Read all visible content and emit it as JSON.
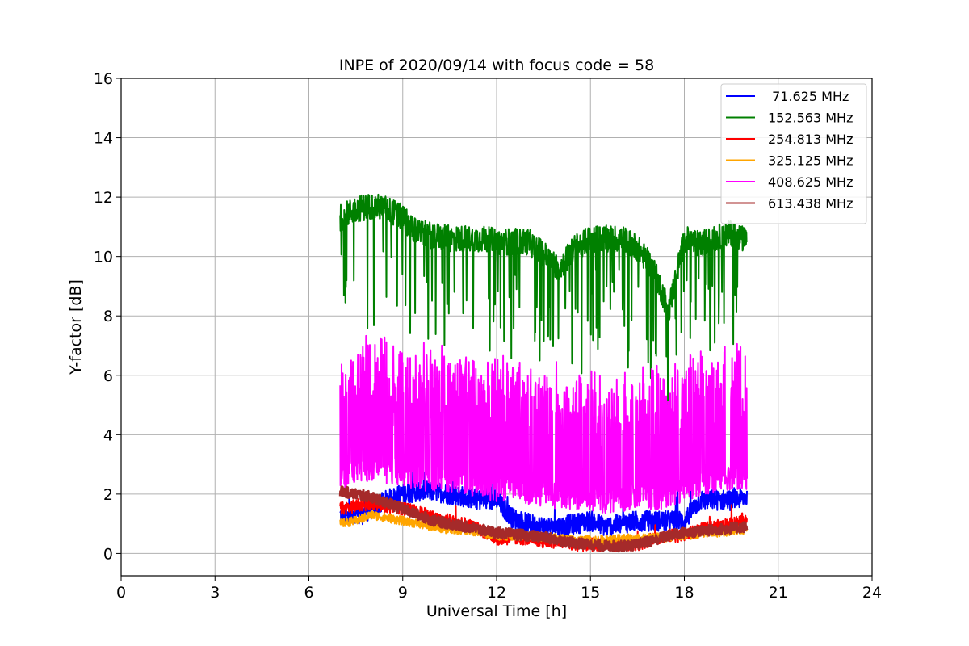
{
  "chart_data": {
    "type": "line",
    "title": "INPE of 2020/09/14 with focus code = 58",
    "xlabel": "Universal Time [h]",
    "ylabel": "Y-factor [dB]",
    "xlim": [
      0,
      24
    ],
    "ylim": [
      -0.75,
      16
    ],
    "xticks": [
      0,
      3,
      6,
      9,
      12,
      15,
      18,
      21,
      24
    ],
    "yticks": [
      0,
      2,
      4,
      6,
      8,
      10,
      12,
      14,
      16
    ],
    "grid": true,
    "legend_position": "top-right",
    "series": [
      {
        "name": " 71.625 MHz",
        "color": "#0000ff",
        "x": [
          7.0,
          7.5,
          8.0,
          8.5,
          9.0,
          9.5,
          10.0,
          10.5,
          11.0,
          11.5,
          12.0,
          12.5,
          13.0,
          13.5,
          14.0,
          14.5,
          15.0,
          15.5,
          16.0,
          16.5,
          17.0,
          17.5,
          18.0,
          18.5,
          19.0,
          19.5,
          20.0
        ],
        "y": [
          1.3,
          1.2,
          1.5,
          1.8,
          2.0,
          2.1,
          2.1,
          2.0,
          1.9,
          1.8,
          1.8,
          1.2,
          1.0,
          0.9,
          0.9,
          1.0,
          1.1,
          0.9,
          1.0,
          1.1,
          1.1,
          1.1,
          1.1,
          1.8,
          1.8,
          1.8,
          1.9
        ]
      },
      {
        "name": "152.563 MHz",
        "color": "#008000",
        "x": [
          7.0,
          7.5,
          8.0,
          8.5,
          9.0,
          9.5,
          10.0,
          10.5,
          11.0,
          11.5,
          12.0,
          12.5,
          13.0,
          13.5,
          14.0,
          14.5,
          15.0,
          15.5,
          16.0,
          16.5,
          17.0,
          17.5,
          18.0,
          18.5,
          19.0,
          19.5,
          20.0
        ],
        "y": [
          11.3,
          11.6,
          11.7,
          11.6,
          11.3,
          10.8,
          10.7,
          10.6,
          10.6,
          10.6,
          10.5,
          10.5,
          10.5,
          10.1,
          9.6,
          10.3,
          10.6,
          10.6,
          10.6,
          10.3,
          9.6,
          8.2,
          10.6,
          10.4,
          10.6,
          10.8,
          10.5
        ]
      },
      {
        "name": "254.813 MHz",
        "color": "#ff0000",
        "x": [
          7.0,
          7.5,
          8.0,
          8.5,
          9.0,
          9.5,
          10.0,
          10.5,
          11.0,
          11.5,
          12.0,
          12.5,
          13.0,
          13.5,
          14.0,
          14.5,
          15.0,
          15.5,
          16.0,
          16.5,
          17.0,
          17.5,
          18.0,
          18.5,
          19.0,
          19.5,
          20.0
        ],
        "y": [
          1.5,
          1.6,
          1.7,
          1.6,
          1.5,
          1.4,
          1.2,
          1.1,
          1.0,
          0.8,
          0.5,
          0.5,
          0.5,
          0.4,
          0.4,
          0.3,
          0.3,
          0.3,
          0.3,
          0.3,
          0.5,
          0.6,
          0.6,
          0.8,
          0.9,
          1.0,
          1.2
        ]
      },
      {
        "name": "325.125 MHz",
        "color": "#ffa500",
        "x": [
          7.0,
          7.5,
          8.0,
          8.5,
          9.0,
          9.5,
          10.0,
          10.5,
          11.0,
          11.5,
          12.0,
          12.5,
          13.0,
          13.5,
          14.0,
          14.5,
          15.0,
          15.5,
          16.0,
          16.5,
          17.0,
          17.5,
          18.0,
          18.5,
          19.0,
          19.5,
          20.0
        ],
        "y": [
          1.0,
          1.1,
          1.3,
          1.2,
          1.1,
          1.0,
          0.9,
          0.8,
          0.8,
          0.7,
          0.6,
          0.6,
          0.6,
          0.55,
          0.5,
          0.45,
          0.45,
          0.45,
          0.5,
          0.5,
          0.55,
          0.55,
          0.6,
          0.65,
          0.7,
          0.75,
          0.8
        ]
      },
      {
        "name": "408.625 MHz",
        "color": "#ff00ff",
        "x": [
          7.0,
          7.5,
          8.0,
          8.5,
          9.0,
          9.5,
          10.0,
          10.5,
          11.0,
          11.5,
          12.0,
          12.5,
          13.0,
          13.5,
          14.0,
          14.5,
          15.0,
          15.5,
          16.0,
          16.5,
          17.0,
          17.5,
          18.0,
          18.5,
          19.0,
          19.5,
          20.0
        ],
        "y": [
          2.6,
          2.8,
          2.9,
          2.8,
          2.7,
          2.6,
          2.5,
          2.5,
          2.4,
          2.3,
          2.2,
          2.2,
          2.1,
          2.0,
          1.9,
          1.9,
          1.9,
          1.8,
          1.8,
          1.9,
          1.9,
          2.0,
          2.2,
          2.4,
          2.5,
          2.6,
          2.6
        ]
      },
      {
        "name": "613.438 MHz",
        "color": "#a52a2a",
        "x": [
          7.0,
          7.5,
          8.0,
          8.5,
          9.0,
          9.5,
          10.0,
          10.5,
          11.0,
          11.5,
          12.0,
          12.5,
          13.0,
          13.5,
          14.0,
          14.5,
          15.0,
          15.5,
          16.0,
          16.5,
          17.0,
          17.5,
          18.0,
          18.5,
          19.0,
          19.5,
          20.0
        ],
        "y": [
          2.1,
          2.0,
          1.9,
          1.7,
          1.5,
          1.3,
          1.1,
          1.0,
          0.9,
          0.8,
          0.7,
          0.65,
          0.6,
          0.55,
          0.45,
          0.35,
          0.3,
          0.25,
          0.25,
          0.3,
          0.45,
          0.6,
          0.7,
          0.75,
          0.8,
          0.85,
          0.9
        ]
      }
    ]
  }
}
